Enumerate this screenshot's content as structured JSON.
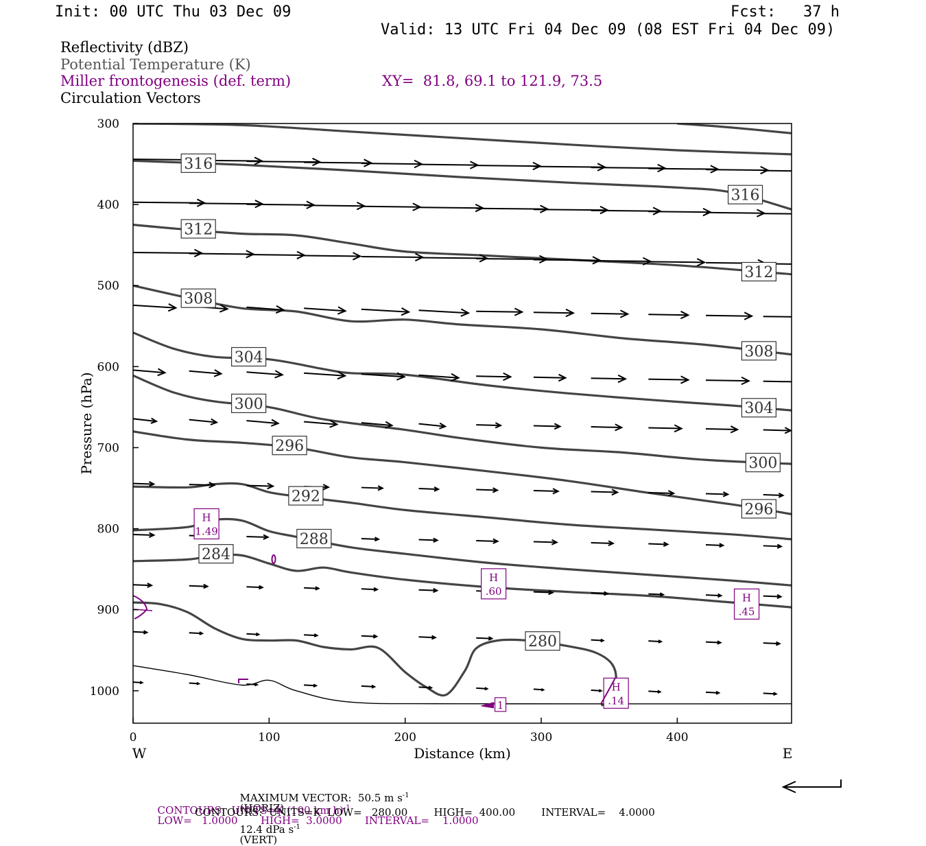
{
  "header": {
    "init": "Init: 00 UTC Thu 03 Dec 09",
    "fcst": "Fcst:   37 h",
    "valid": "Valid: 13 UTC Fri 04 Dec 09 (08 EST Fri 04 Dec 09)"
  },
  "legend": {
    "reflectivity": "Reflectivity (dBZ)",
    "theta": "Potential Temperature (K)",
    "miller": "Miller frontogenesis (def. term)",
    "xy": "XY=  81.8, 69.1 to 121.9, 73.5",
    "circulation": "Circulation Vectors"
  },
  "footer": {
    "max_vector": "MAXIMUM VECTOR:  50.5 m s",
    "max_vector_horiz": "(HORIZ)",
    "max_vector_vert": "12.4 dPa s",
    "max_vector_vert_tail": "(VERT)",
    "exp": "-1",
    "contours_front_a": "CONTOURS:  UNITS=K (100 km h)",
    "contours_front_b": "LOW=   1.0000       HIGH=  3.0000       INTERVAL=    1.0000",
    "contours_theta": "CONTOURS:  UNITS=K  LOW=   280.00        HIGH=  400.00        INTERVAL=    4.0000"
  },
  "colors": {
    "theta": "#444444",
    "frontogenesis": "#800080",
    "vectors": "#000000"
  },
  "chart_data": {
    "type": "cross-section",
    "xlabel": "Distance (km)",
    "ylabel": "Pressure (hPa)",
    "xlim": [
      0,
      484
    ],
    "ylim": [
      1040,
      300
    ],
    "x_ticks": [
      0,
      100,
      200,
      300,
      400
    ],
    "y_ticks": [
      300,
      400,
      500,
      600,
      700,
      800,
      900,
      1000
    ],
    "x_end_labels": {
      "left": "W",
      "right": "E"
    },
    "theta_contours": [
      {
        "label": "316",
        "points": [
          [
            0,
            346
          ],
          [
            80,
            351
          ],
          [
            160,
            358
          ],
          [
            240,
            366
          ],
          [
            320,
            373
          ],
          [
            400,
            379
          ],
          [
            440,
            385
          ],
          [
            484,
            406
          ]
        ]
      },
      {
        "label": "312",
        "points": [
          [
            0,
            425
          ],
          [
            40,
            431
          ],
          [
            80,
            436
          ],
          [
            120,
            438
          ],
          [
            160,
            448
          ],
          [
            200,
            458
          ],
          [
            260,
            463
          ],
          [
            320,
            468
          ],
          [
            400,
            475
          ],
          [
            484,
            486
          ]
        ]
      },
      {
        "label": "308",
        "points": [
          [
            0,
            500
          ],
          [
            40,
            515
          ],
          [
            80,
            528
          ],
          [
            120,
            532
          ],
          [
            160,
            544
          ],
          [
            200,
            542
          ],
          [
            240,
            548
          ],
          [
            300,
            554
          ],
          [
            360,
            565
          ],
          [
            420,
            573
          ],
          [
            484,
            585
          ]
        ]
      },
      {
        "label": "304",
        "points": [
          [
            0,
            558
          ],
          [
            30,
            578
          ],
          [
            60,
            588
          ],
          [
            100,
            591
          ],
          [
            140,
            603
          ],
          [
            160,
            608
          ],
          [
            200,
            610
          ],
          [
            260,
            623
          ],
          [
            320,
            633
          ],
          [
            380,
            641
          ],
          [
            440,
            648
          ],
          [
            484,
            654
          ]
        ]
      },
      {
        "label": "300",
        "points": [
          [
            0,
            611
          ],
          [
            30,
            632
          ],
          [
            60,
            643
          ],
          [
            100,
            650
          ],
          [
            140,
            665
          ],
          [
            200,
            678
          ],
          [
            240,
            688
          ],
          [
            300,
            700
          ],
          [
            360,
            706
          ],
          [
            420,
            715
          ],
          [
            484,
            720
          ]
        ]
      },
      {
        "label": "296",
        "points": [
          [
            0,
            680
          ],
          [
            40,
            690
          ],
          [
            80,
            694
          ],
          [
            120,
            700
          ],
          [
            160,
            712
          ],
          [
            200,
            718
          ],
          [
            260,
            729
          ],
          [
            320,
            741
          ],
          [
            380,
            756
          ],
          [
            440,
            770
          ],
          [
            484,
            782
          ]
        ]
      },
      {
        "label": "292",
        "points": [
          [
            0,
            748
          ],
          [
            40,
            749
          ],
          [
            60,
            745
          ],
          [
            80,
            745
          ],
          [
            100,
            755
          ],
          [
            120,
            760
          ],
          [
            160,
            768
          ],
          [
            200,
            777
          ],
          [
            260,
            786
          ],
          [
            320,
            795
          ],
          [
            380,
            801
          ],
          [
            440,
            807
          ],
          [
            484,
            813
          ]
        ]
      },
      {
        "label": "288",
        "points": [
          [
            0,
            802
          ],
          [
            40,
            798
          ],
          [
            60,
            789
          ],
          [
            80,
            790
          ],
          [
            100,
            803
          ],
          [
            120,
            810
          ],
          [
            160,
            823
          ],
          [
            200,
            831
          ],
          [
            260,
            842
          ],
          [
            320,
            850
          ],
          [
            380,
            857
          ],
          [
            440,
            864
          ],
          [
            484,
            870
          ]
        ]
      },
      {
        "label": "284",
        "points": [
          [
            0,
            840
          ],
          [
            40,
            838
          ],
          [
            60,
            833
          ],
          [
            80,
            833
          ],
          [
            100,
            843
          ],
          [
            120,
            852
          ],
          [
            140,
            848
          ],
          [
            160,
            854
          ],
          [
            200,
            863
          ],
          [
            260,
            872
          ],
          [
            320,
            878
          ],
          [
            380,
            883
          ],
          [
            440,
            891
          ],
          [
            484,
            897
          ]
        ]
      },
      {
        "label": "280",
        "points": [
          [
            0,
            891
          ],
          [
            20,
            893
          ],
          [
            40,
            903
          ],
          [
            60,
            923
          ],
          [
            80,
            936
          ],
          [
            100,
            938
          ],
          [
            120,
            938
          ],
          [
            140,
            946
          ],
          [
            160,
            949
          ],
          [
            180,
            947
          ],
          [
            200,
            977
          ],
          [
            215,
            995
          ],
          [
            230,
            1005
          ],
          [
            244,
            975
          ],
          [
            252,
            948
          ],
          [
            268,
            938
          ],
          [
            290,
            938
          ],
          [
            320,
            945
          ],
          [
            340,
            953
          ],
          [
            352,
            967
          ],
          [
            355,
            988
          ],
          [
            350,
            1013
          ],
          [
            344,
            1018
          ]
        ]
      }
    ],
    "surface": {
      "points": [
        [
          0,
          969
        ],
        [
          40,
          980
        ],
        [
          80,
          993
        ],
        [
          100,
          987
        ],
        [
          120,
          1000
        ],
        [
          160,
          1014
        ],
        [
          240,
          1016
        ],
        [
          484,
          1016
        ]
      ]
    },
    "frontogenesis_maxima": [
      {
        "label": "H",
        "value": "1.49",
        "x": 54,
        "p": 794
      },
      {
        "label": "H",
        "value": ".60",
        "x": 265,
        "p": 868
      },
      {
        "label": "H",
        "value": ".45",
        "x": 451,
        "p": 893
      },
      {
        "label": "H",
        "value": ".14",
        "x": 355,
        "p": 1003
      },
      {
        "label": "",
        "value": "1",
        "x": 270,
        "p": 1017
      }
    ],
    "wind_rows": [
      {
        "p": 345,
        "len": 36
      },
      {
        "p": 398,
        "len": 36
      },
      {
        "p": 460,
        "len": 34
      },
      {
        "p": 525,
        "len": 30
      },
      {
        "p": 605,
        "len": 26
      },
      {
        "p": 665,
        "len": 20
      },
      {
        "p": 745,
        "len": 16
      },
      {
        "p": 808,
        "len": 14
      },
      {
        "p": 870,
        "len": 12
      },
      {
        "p": 928,
        "len": 10
      },
      {
        "p": 990,
        "len": 8
      }
    ],
    "reference_vector": "MAXIMUM VECTOR"
  }
}
